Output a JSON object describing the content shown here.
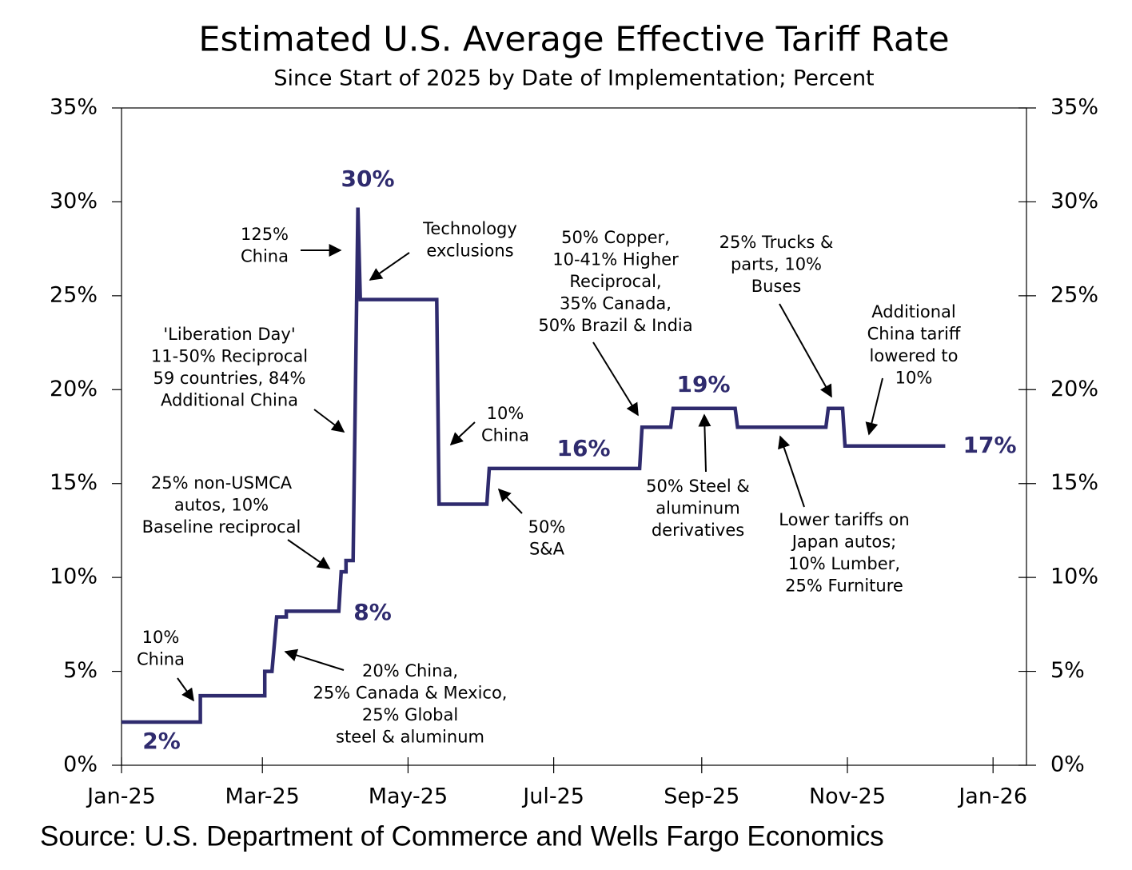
{
  "chart_data": {
    "type": "step-line",
    "title": "Estimated U.S. Average Effective Tariff Rate",
    "subtitle": "Since Start of 2025 by Date of Implementation; Percent",
    "source": "Source: U.S. Department of Commerce and Wells Fargo Economics",
    "x": [
      0,
      33,
      33,
      60,
      60,
      63,
      65,
      69,
      69,
      91,
      92,
      94,
      94,
      97,
      99,
      100,
      132,
      133,
      153,
      154,
      217,
      218,
      230,
      231,
      257,
      258,
      295,
      296,
      302,
      303,
      345
    ],
    "values": [
      2.3,
      2.3,
      3.7,
      3.7,
      5.0,
      5.0,
      7.9,
      7.9,
      8.2,
      8.2,
      10.3,
      10.3,
      10.9,
      10.9,
      29.7,
      24.8,
      24.8,
      13.9,
      13.9,
      15.8,
      15.8,
      18.0,
      18.0,
      19.0,
      19.0,
      18.0,
      18.0,
      19.0,
      19.0,
      17.0,
      17.0
    ],
    "color": "#2f2b6e",
    "xlim": [
      0,
      379
    ],
    "xticks": [
      {
        "value": 0,
        "label": "Jan-25"
      },
      {
        "value": 59,
        "label": "Mar-25"
      },
      {
        "value": 120,
        "label": "May-25"
      },
      {
        "value": 181,
        "label": "Jul-25"
      },
      {
        "value": 243,
        "label": "Sep-25"
      },
      {
        "value": 304,
        "label": "Nov-25"
      },
      {
        "value": 365,
        "label": "Jan-26"
      }
    ],
    "ylim": [
      0,
      35
    ],
    "yticks": [
      {
        "value": 0,
        "label": "0%"
      },
      {
        "value": 5,
        "label": "5%"
      },
      {
        "value": 10,
        "label": "10%"
      },
      {
        "value": 15,
        "label": "15%"
      },
      {
        "value": 20,
        "label": "20%"
      },
      {
        "value": 25,
        "label": "25%"
      },
      {
        "value": 30,
        "label": "30%"
      },
      {
        "value": 35,
        "label": "35%"
      }
    ],
    "y2lim": [
      0,
      35
    ],
    "y2ticks": [
      {
        "value": 0,
        "label": "0%"
      },
      {
        "value": 5,
        "label": "5%"
      },
      {
        "value": 10,
        "label": "10%"
      },
      {
        "value": 15,
        "label": "15%"
      },
      {
        "value": 20,
        "label": "20%"
      },
      {
        "value": 25,
        "label": "25%"
      },
      {
        "value": 30,
        "label": "30%"
      },
      {
        "value": 35,
        "label": "35%"
      }
    ],
    "callouts": [
      "30%",
      "8%",
      "2%",
      "16%",
      "19%",
      "17%"
    ],
    "annotations": [
      [
        "10%",
        "China"
      ],
      [
        "20% China,",
        "25% Canada & Mexico,",
        "25% Global",
        "steel & aluminum"
      ],
      [
        "25% non-USMCA",
        "autos, 10%",
        "Baseline reciprocal"
      ],
      [
        "'Liberation Day'",
        "11-50% Reciprocal",
        "59 countries, 84%",
        "Additional China"
      ],
      [
        "125%",
        "China"
      ],
      [
        "Technology",
        "exclusions"
      ],
      [
        "10%",
        "China"
      ],
      [
        "50%",
        "S&A"
      ],
      [
        "50% Copper,",
        "10-41% Higher",
        "Reciprocal,",
        "35% Canada,",
        "50% Brazil & India"
      ],
      [
        "50% Steel &",
        "aluminum",
        "derivatives"
      ],
      [
        "25% Trucks &",
        "parts, 10%",
        "Buses"
      ],
      [
        "Lower tariffs on",
        "Japan autos;",
        "10% Lumber,",
        "25% Furniture"
      ],
      [
        "Additional",
        "China tariff",
        "lowered to",
        "10%"
      ]
    ]
  }
}
